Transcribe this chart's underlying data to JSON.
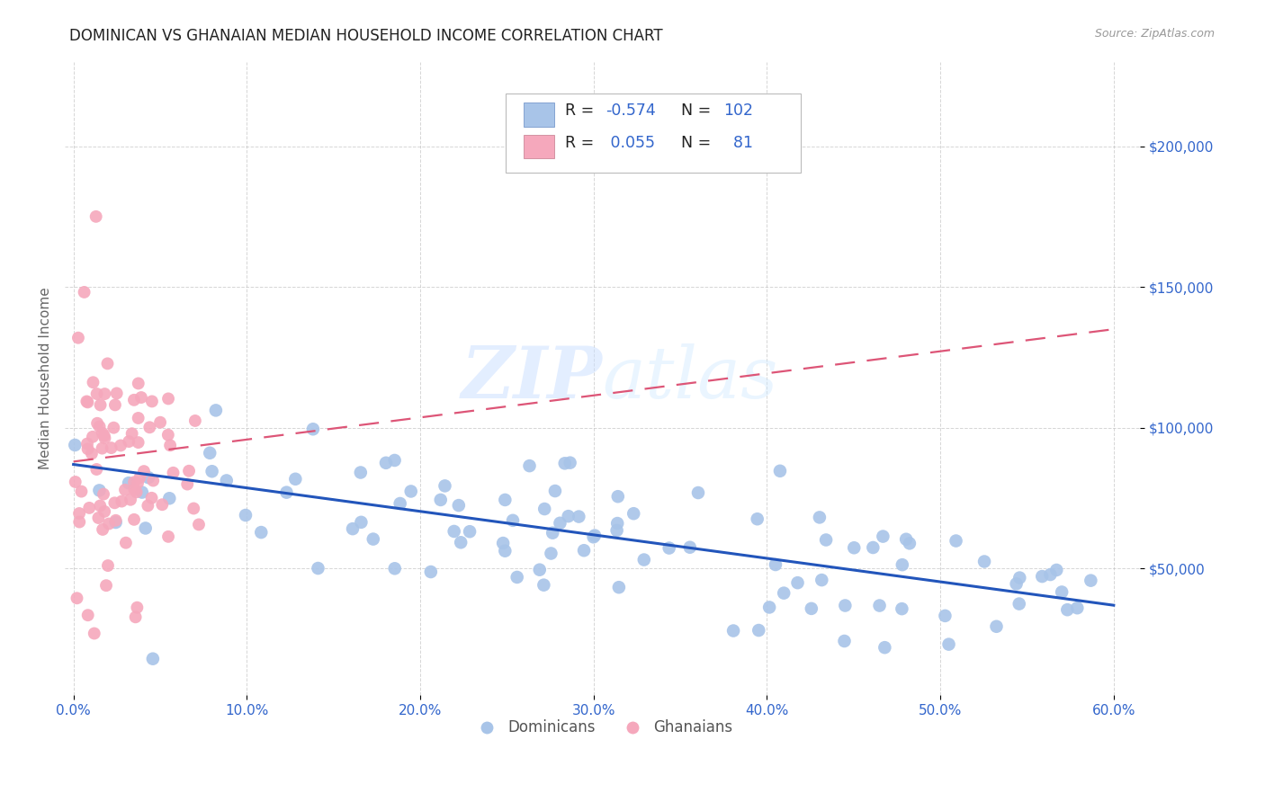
{
  "title": "DOMINICAN VS GHANAIAN MEDIAN HOUSEHOLD INCOME CORRELATION CHART",
  "source": "Source: ZipAtlas.com",
  "ylabel": "Median Household Income",
  "watermark": "ZIPAtlas",
  "xlim": [
    -0.005,
    0.615
  ],
  "ylim": [
    5000,
    230000
  ],
  "xtick_labels": [
    "0.0%",
    "10.0%",
    "20.0%",
    "30.0%",
    "40.0%",
    "50.0%",
    "60.0%"
  ],
  "xtick_vals": [
    0.0,
    0.1,
    0.2,
    0.3,
    0.4,
    0.5,
    0.6
  ],
  "ytick_vals": [
    50000,
    100000,
    150000,
    200000
  ],
  "ytick_labels": [
    "$50,000",
    "$100,000",
    "$150,000",
    "$200,000"
  ],
  "dominicans_color": "#a8c4e8",
  "ghanaians_color": "#f5a8bc",
  "dominicans_line_color": "#2255bb",
  "ghanaians_line_color": "#dd5577",
  "grid_color": "#bbbbbb",
  "title_color": "#222222",
  "axis_label_color": "#666666",
  "tick_label_color": "#3366cc",
  "R_dominicans": -0.574,
  "N_dominicans": 102,
  "R_ghanaians": 0.055,
  "N_ghanaians": 81,
  "dom_line_x0": 0.0,
  "dom_line_y0": 87000,
  "dom_line_x1": 0.6,
  "dom_line_y1": 37000,
  "gha_line_x0": 0.0,
  "gha_line_y0": 88000,
  "gha_line_x1": 0.6,
  "gha_line_y1": 135000
}
